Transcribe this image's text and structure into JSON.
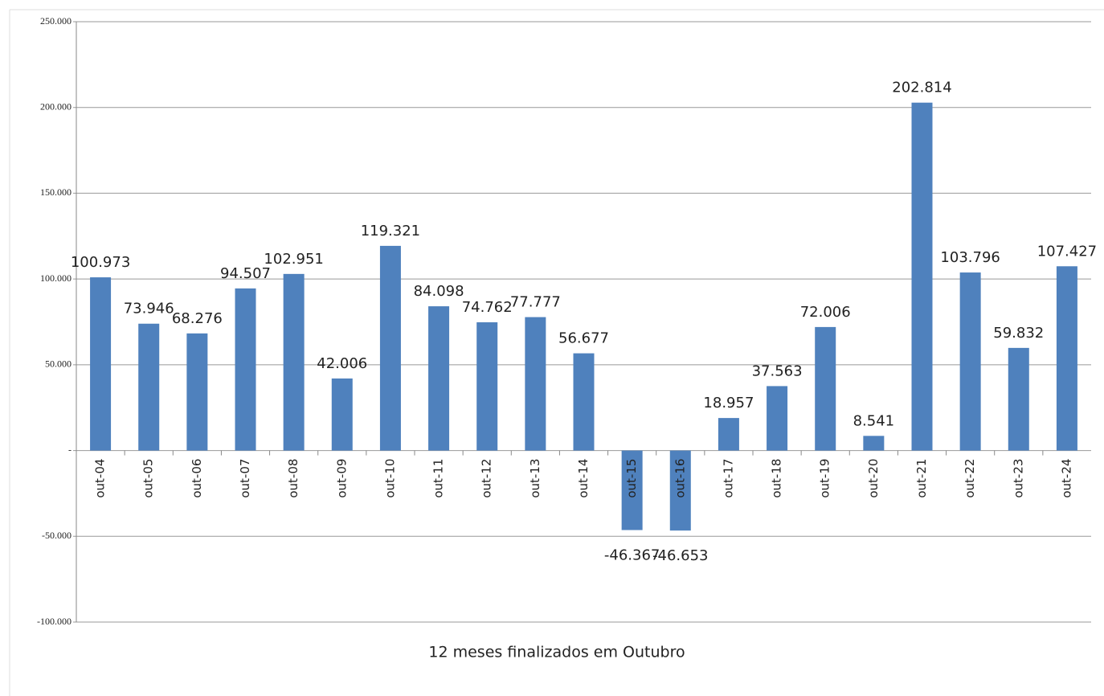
{
  "chart_data": {
    "type": "bar",
    "x_label": "12 meses finalizados em Outubro",
    "categories": [
      "out-04",
      "out-05",
      "out-06",
      "out-07",
      "out-08",
      "out-09",
      "out-10",
      "out-11",
      "out-12",
      "out-13",
      "out-14",
      "out-15",
      "out-16",
      "out-17",
      "out-18",
      "out-19",
      "out-20",
      "out-21",
      "out-22",
      "out-23",
      "out-24"
    ],
    "values": [
      100973,
      73946,
      68276,
      94507,
      102951,
      42006,
      119321,
      84098,
      74762,
      77777,
      56677,
      -46367,
      -46653,
      18957,
      37563,
      72006,
      8541,
      202814,
      103796,
      59832,
      107427
    ],
    "value_labels": [
      "100.973",
      "73.946",
      "68.276",
      "94.507",
      "102.951",
      "42.006",
      "119.321",
      "84.098",
      "74.762",
      "77.777",
      "56.677",
      "-46.367",
      "-46.653",
      "18.957",
      "37.563",
      "72.006",
      "8.541",
      "202.814",
      "103.796",
      "59.832",
      "107.427"
    ],
    "color": "#4f81bd",
    "ylim": [
      -100000,
      250000
    ],
    "yticks": [
      {
        "value": -100000,
        "label": "-100.000"
      },
      {
        "value": -50000,
        "label": "-50.000"
      },
      {
        "value": 0,
        "label": "-"
      },
      {
        "value": 50000,
        "label": "50.000"
      },
      {
        "value": 100000,
        "label": "100.000"
      },
      {
        "value": 150000,
        "label": "150.000"
      },
      {
        "value": 200000,
        "label": "200.000"
      },
      {
        "value": 250000,
        "label": "250.000"
      }
    ],
    "grid": true
  }
}
